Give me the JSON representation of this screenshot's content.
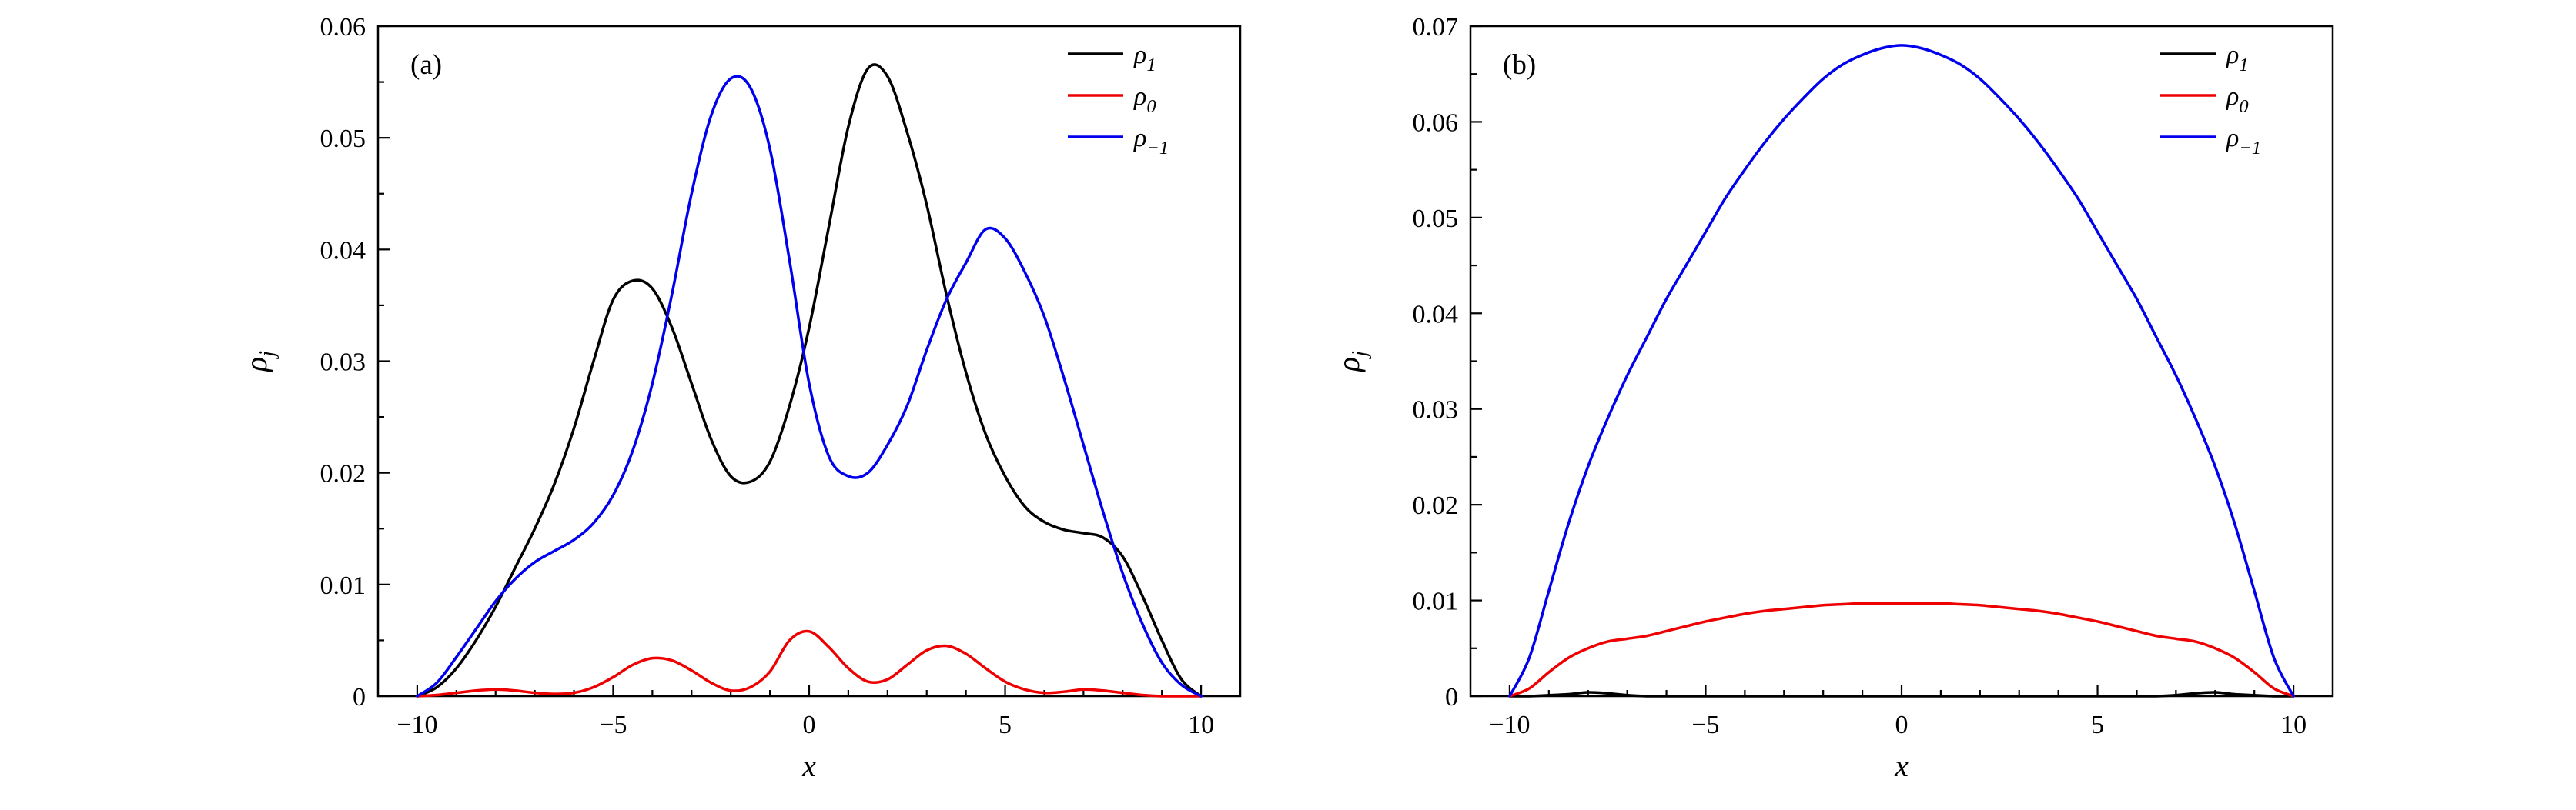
{
  "figure": {
    "background": "#ffffff",
    "panel_count": 2
  },
  "chart_data": [
    {
      "type": "line",
      "tag": "(a)",
      "xlabel": "x",
      "ylabel_base": "ρ",
      "ylabel_sub": "j",
      "xlim": [
        -11,
        11
      ],
      "ylim": [
        0,
        0.06
      ],
      "grid": false,
      "legend_position": "top-right",
      "x_ticks": [
        {
          "v": -10,
          "label": "−10"
        },
        {
          "v": -5,
          "label": "−5"
        },
        {
          "v": 0,
          "label": "0"
        },
        {
          "v": 5,
          "label": "5"
        },
        {
          "v": 10,
          "label": "10"
        }
      ],
      "y_ticks": [
        {
          "v": 0,
          "label": "0"
        },
        {
          "v": 0.01,
          "label": "0.01"
        },
        {
          "v": 0.02,
          "label": "0.02"
        },
        {
          "v": 0.03,
          "label": "0.03"
        },
        {
          "v": 0.04,
          "label": "0.04"
        },
        {
          "v": 0.05,
          "label": "0.05"
        },
        {
          "v": 0.06,
          "label": "0.06"
        }
      ],
      "x_minor_step": 1,
      "y_minor_step": 0.005,
      "x": [
        -10,
        -9.5,
        -9,
        -8.5,
        -8,
        -7.5,
        -7,
        -6.5,
        -6,
        -5.5,
        -5,
        -4.5,
        -4,
        -3.5,
        -3,
        -2.5,
        -2,
        -1.5,
        -1,
        -0.5,
        0,
        0.5,
        1,
        1.5,
        2,
        2.5,
        3,
        3.5,
        4,
        4.5,
        5,
        5.5,
        6,
        6.5,
        7,
        7.5,
        8,
        8.5,
        9,
        9.5,
        10
      ],
      "series": [
        {
          "name": "rho_1",
          "label_base": "ρ",
          "label_sub": "1",
          "color": "#000000",
          "values": [
            0,
            0.0008,
            0.0025,
            0.005,
            0.008,
            0.0115,
            0.015,
            0.019,
            0.024,
            0.03,
            0.0355,
            0.0372,
            0.0365,
            0.033,
            0.028,
            0.023,
            0.0197,
            0.0192,
            0.021,
            0.026,
            0.033,
            0.042,
            0.051,
            0.0562,
            0.0555,
            0.0505,
            0.044,
            0.036,
            0.029,
            0.0235,
            0.0197,
            0.017,
            0.0156,
            0.0149,
            0.0146,
            0.0142,
            0.0125,
            0.009,
            0.005,
            0.0015,
            0
          ]
        },
        {
          "name": "rho_0",
          "label_base": "ρ",
          "label_sub": "0",
          "color": "#ee0000",
          "values": [
            0,
            0.0001,
            0.0003,
            0.0005,
            0.0006,
            0.0005,
            0.0003,
            0.0002,
            0.0003,
            0.0008,
            0.0017,
            0.0028,
            0.0034,
            0.0032,
            0.0023,
            0.0012,
            0.0005,
            0.0008,
            0.0022,
            0.005,
            0.0058,
            0.0044,
            0.0025,
            0.0013,
            0.0015,
            0.0028,
            0.0041,
            0.0045,
            0.0038,
            0.0025,
            0.0013,
            0.0006,
            0.0003,
            0.0004,
            0.0006,
            0.0005,
            0.0003,
            0.0001,
            0,
            0,
            0
          ]
        },
        {
          "name": "rho_-1",
          "label_base": "ρ",
          "label_sub": "−1",
          "color": "#0000ee",
          "values": [
            0,
            0.0012,
            0.0035,
            0.006,
            0.0085,
            0.0105,
            0.012,
            0.013,
            0.014,
            0.0155,
            0.018,
            0.022,
            0.028,
            0.036,
            0.045,
            0.052,
            0.0553,
            0.0545,
            0.049,
            0.039,
            0.028,
            0.0215,
            0.0197,
            0.02,
            0.0225,
            0.026,
            0.031,
            0.0355,
            0.0388,
            0.0418,
            0.041,
            0.038,
            0.034,
            0.0285,
            0.0225,
            0.0165,
            0.011,
            0.0065,
            0.003,
            0.001,
            0
          ]
        }
      ]
    },
    {
      "type": "line",
      "tag": "(b)",
      "xlabel": "x",
      "ylabel_base": "ρ",
      "ylabel_sub": "j",
      "xlim": [
        -11,
        11
      ],
      "ylim": [
        0,
        0.07
      ],
      "grid": false,
      "legend_position": "top-right",
      "x_ticks": [
        {
          "v": -10,
          "label": "−10"
        },
        {
          "v": -5,
          "label": "−5"
        },
        {
          "v": 0,
          "label": "0"
        },
        {
          "v": 5,
          "label": "5"
        },
        {
          "v": 10,
          "label": "10"
        }
      ],
      "y_ticks": [
        {
          "v": 0,
          "label": "0"
        },
        {
          "v": 0.01,
          "label": "0.01"
        },
        {
          "v": 0.02,
          "label": "0.02"
        },
        {
          "v": 0.03,
          "label": "0.03"
        },
        {
          "v": 0.04,
          "label": "0.04"
        },
        {
          "v": 0.05,
          "label": "0.05"
        },
        {
          "v": 0.06,
          "label": "0.06"
        },
        {
          "v": 0.07,
          "label": "0.07"
        }
      ],
      "x_minor_step": 1,
      "y_minor_step": 0.005,
      "x": [
        -10,
        -9.5,
        -9,
        -8.5,
        -8,
        -7.5,
        -7,
        -6.5,
        -6,
        -5.5,
        -5,
        -4.5,
        -4,
        -3.5,
        -3,
        -2.5,
        -2,
        -1.5,
        -1,
        -0.5,
        0,
        0.5,
        1,
        1.5,
        2,
        2.5,
        3,
        3.5,
        4,
        4.5,
        5,
        5.5,
        6,
        6.5,
        7,
        7.5,
        8,
        8.5,
        9,
        9.5,
        10
      ],
      "series": [
        {
          "name": "rho_1",
          "label_base": "ρ",
          "label_sub": "1",
          "color": "#000000",
          "values": [
            0,
            0,
            0.0001,
            0.0002,
            0.0004,
            0.0003,
            0.0001,
            0,
            0,
            0,
            0,
            0,
            0,
            0,
            0,
            0,
            0,
            0,
            0,
            0,
            0,
            0,
            0,
            0,
            0,
            0,
            0,
            0,
            0,
            0,
            0,
            0,
            0,
            0,
            0.0001,
            0.0003,
            0.0004,
            0.0002,
            0.0001,
            0,
            0
          ]
        },
        {
          "name": "rho_0",
          "label_base": "ρ",
          "label_sub": "0",
          "color": "#ee0000",
          "values": [
            0,
            0.0008,
            0.0025,
            0.004,
            0.005,
            0.0057,
            0.006,
            0.0063,
            0.0068,
            0.0073,
            0.0078,
            0.0082,
            0.0086,
            0.0089,
            0.0091,
            0.0093,
            0.0095,
            0.0096,
            0.0097,
            0.0097,
            0.0097,
            0.0097,
            0.0097,
            0.0096,
            0.0095,
            0.0093,
            0.0091,
            0.0089,
            0.0086,
            0.0082,
            0.0078,
            0.0073,
            0.0068,
            0.0063,
            0.006,
            0.0057,
            0.005,
            0.004,
            0.0025,
            0.0008,
            0
          ]
        },
        {
          "name": "rho_-1",
          "label_base": "ρ",
          "label_sub": "−1",
          "color": "#0000ee",
          "values": [
            0,
            0.004,
            0.011,
            0.018,
            0.024,
            0.029,
            0.0335,
            0.0375,
            0.0415,
            0.045,
            0.0485,
            0.052,
            0.055,
            0.0578,
            0.0603,
            0.0625,
            0.0645,
            0.066,
            0.067,
            0.0677,
            0.068,
            0.0677,
            0.067,
            0.066,
            0.0645,
            0.0625,
            0.0603,
            0.0578,
            0.055,
            0.052,
            0.0485,
            0.045,
            0.0415,
            0.0375,
            0.0335,
            0.029,
            0.024,
            0.018,
            0.011,
            0.004,
            0
          ]
        }
      ]
    }
  ]
}
